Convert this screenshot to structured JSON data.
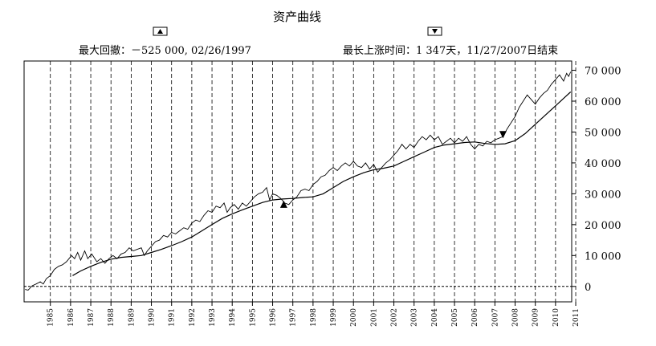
{
  "chart_data": {
    "type": "line",
    "title": "资产曲线",
    "annotations": {
      "drawdown": {
        "text": "最大回撤：－525 000, 02/26/1997",
        "marker": "up-triangle"
      },
      "run_up": {
        "text": "最长上涨时间：1 347天，11/27/2007日结束",
        "marker": "down-triangle"
      }
    },
    "x_ticks": [
      "1985",
      "1986",
      "1987",
      "1988",
      "1989",
      "1990",
      "1991",
      "1992",
      "1993",
      "1994",
      "1995",
      "1996",
      "1997",
      "1998",
      "1999",
      "2000",
      "2001",
      "2002",
      "2003",
      "2004",
      "2005",
      "2006",
      "2007",
      "2008",
      "2009",
      "2010",
      "2011"
    ],
    "y_ticks": [
      "0",
      "10 000",
      "20 000",
      "30 000",
      "40 000",
      "50 000",
      "60 000",
      "70 000"
    ],
    "xlim": [
      1984.2,
      2011.3
    ],
    "ylim": [
      -5000,
      73000
    ],
    "grid": "vertical-dashed",
    "zero_line": "dashed",
    "series": [
      {
        "role": "equity",
        "points": [
          [
            1984.25,
            -1000
          ],
          [
            1984.4,
            -1200
          ],
          [
            1984.6,
            200
          ],
          [
            1984.8,
            800
          ],
          [
            1985.0,
            1500
          ],
          [
            1985.15,
            800
          ],
          [
            1985.3,
            2500
          ],
          [
            1985.5,
            3500
          ],
          [
            1985.7,
            5500
          ],
          [
            1985.9,
            6500
          ],
          [
            1986.1,
            7000
          ],
          [
            1986.3,
            8000
          ],
          [
            1986.55,
            10000
          ],
          [
            1986.7,
            9000
          ],
          [
            1986.85,
            11000
          ],
          [
            1987.0,
            8500
          ],
          [
            1987.2,
            11500
          ],
          [
            1987.35,
            9000
          ],
          [
            1987.55,
            10500
          ],
          [
            1987.8,
            8000
          ],
          [
            1988.0,
            9000
          ],
          [
            1988.2,
            7500
          ],
          [
            1988.4,
            9000
          ],
          [
            1988.6,
            10000
          ],
          [
            1988.8,
            9000
          ],
          [
            1989.0,
            10500
          ],
          [
            1989.2,
            11000
          ],
          [
            1989.4,
            12500
          ],
          [
            1989.6,
            11500
          ],
          [
            1989.8,
            12000
          ],
          [
            1990.0,
            12500
          ],
          [
            1990.15,
            10000
          ],
          [
            1990.3,
            11500
          ],
          [
            1990.5,
            13000
          ],
          [
            1990.7,
            14500
          ],
          [
            1990.9,
            15000
          ],
          [
            1991.1,
            16500
          ],
          [
            1991.3,
            16000
          ],
          [
            1991.5,
            17500
          ],
          [
            1991.7,
            17000
          ],
          [
            1991.9,
            18000
          ],
          [
            1992.1,
            19000
          ],
          [
            1992.3,
            18500
          ],
          [
            1992.5,
            20500
          ],
          [
            1992.7,
            21500
          ],
          [
            1992.9,
            21000
          ],
          [
            1993.1,
            23000
          ],
          [
            1993.3,
            24500
          ],
          [
            1993.5,
            24000
          ],
          [
            1993.7,
            26000
          ],
          [
            1993.9,
            25500
          ],
          [
            1994.1,
            27000
          ],
          [
            1994.25,
            24000
          ],
          [
            1994.4,
            25500
          ],
          [
            1994.6,
            26500
          ],
          [
            1994.8,
            25000
          ],
          [
            1995.0,
            27000
          ],
          [
            1995.2,
            26000
          ],
          [
            1995.4,
            27500
          ],
          [
            1995.6,
            29000
          ],
          [
            1995.8,
            30000
          ],
          [
            1996.0,
            30500
          ],
          [
            1996.2,
            32000
          ],
          [
            1996.35,
            28000
          ],
          [
            1996.5,
            30000
          ],
          [
            1996.7,
            29500
          ],
          [
            1996.9,
            28500
          ],
          [
            1997.1,
            27000
          ],
          [
            1997.3,
            26500
          ],
          [
            1997.5,
            28000
          ],
          [
            1997.7,
            29000
          ],
          [
            1997.9,
            31000
          ],
          [
            1998.1,
            31500
          ],
          [
            1998.3,
            31000
          ],
          [
            1998.5,
            33000
          ],
          [
            1998.7,
            34000
          ],
          [
            1998.9,
            35500
          ],
          [
            1999.1,
            36000
          ],
          [
            1999.3,
            37500
          ],
          [
            1999.5,
            38500
          ],
          [
            1999.7,
            37500
          ],
          [
            1999.9,
            39000
          ],
          [
            2000.1,
            40000
          ],
          [
            2000.3,
            39000
          ],
          [
            2000.5,
            40500
          ],
          [
            2000.7,
            39000
          ],
          [
            2000.9,
            38500
          ],
          [
            2001.1,
            40000
          ],
          [
            2001.3,
            38000
          ],
          [
            2001.5,
            39500
          ],
          [
            2001.7,
            37000
          ],
          [
            2001.9,
            38500
          ],
          [
            2002.1,
            40000
          ],
          [
            2002.3,
            41000
          ],
          [
            2002.5,
            42500
          ],
          [
            2002.7,
            44000
          ],
          [
            2002.9,
            46000
          ],
          [
            2003.1,
            44500
          ],
          [
            2003.3,
            46000
          ],
          [
            2003.5,
            45000
          ],
          [
            2003.7,
            47000
          ],
          [
            2003.9,
            48500
          ],
          [
            2004.1,
            47500
          ],
          [
            2004.3,
            49000
          ],
          [
            2004.5,
            47500
          ],
          [
            2004.7,
            48500
          ],
          [
            2004.9,
            46000
          ],
          [
            2005.1,
            47000
          ],
          [
            2005.3,
            48000
          ],
          [
            2005.5,
            46500
          ],
          [
            2005.7,
            48000
          ],
          [
            2005.9,
            47000
          ],
          [
            2006.1,
            48500
          ],
          [
            2006.3,
            46000
          ],
          [
            2006.5,
            44500
          ],
          [
            2006.7,
            46000
          ],
          [
            2006.9,
            45500
          ],
          [
            2007.1,
            47000
          ],
          [
            2007.3,
            46500
          ],
          [
            2007.5,
            47500
          ],
          [
            2007.7,
            48000
          ],
          [
            2007.9,
            48500
          ],
          [
            2008.1,
            51000
          ],
          [
            2008.3,
            53000
          ],
          [
            2008.5,
            55000
          ],
          [
            2008.7,
            58000
          ],
          [
            2008.9,
            60000
          ],
          [
            2009.1,
            62000
          ],
          [
            2009.3,
            60500
          ],
          [
            2009.5,
            59000
          ],
          [
            2009.7,
            61000
          ],
          [
            2009.9,
            62500
          ],
          [
            2010.1,
            63500
          ],
          [
            2010.3,
            65500
          ],
          [
            2010.5,
            67000
          ],
          [
            2010.7,
            68500
          ],
          [
            2010.9,
            66500
          ],
          [
            2011.05,
            69000
          ],
          [
            2011.15,
            68000
          ],
          [
            2011.25,
            69500
          ]
        ]
      },
      {
        "role": "moving-average",
        "points": [
          [
            1986.6,
            3500
          ],
          [
            1987.0,
            5000
          ],
          [
            1987.5,
            6500
          ],
          [
            1988.0,
            7800
          ],
          [
            1988.5,
            8800
          ],
          [
            1989.0,
            9400
          ],
          [
            1989.5,
            9700
          ],
          [
            1990.0,
            10000
          ],
          [
            1990.5,
            11000
          ],
          [
            1991.0,
            12000
          ],
          [
            1991.5,
            13200
          ],
          [
            1992.0,
            14500
          ],
          [
            1992.5,
            16000
          ],
          [
            1993.0,
            18000
          ],
          [
            1993.5,
            20000
          ],
          [
            1994.0,
            22000
          ],
          [
            1994.5,
            23500
          ],
          [
            1995.0,
            24800
          ],
          [
            1995.5,
            26000
          ],
          [
            1996.0,
            27200
          ],
          [
            1996.5,
            28000
          ],
          [
            1997.0,
            28300
          ],
          [
            1997.5,
            28500
          ],
          [
            1998.0,
            28800
          ],
          [
            1998.5,
            29000
          ],
          [
            1999.0,
            30000
          ],
          [
            1999.5,
            32000
          ],
          [
            2000.0,
            34000
          ],
          [
            2000.5,
            35500
          ],
          [
            2001.0,
            36800
          ],
          [
            2001.5,
            37800
          ],
          [
            2002.0,
            38300
          ],
          [
            2002.5,
            39000
          ],
          [
            2003.0,
            40500
          ],
          [
            2003.5,
            42000
          ],
          [
            2004.0,
            43500
          ],
          [
            2004.5,
            45000
          ],
          [
            2005.0,
            45800
          ],
          [
            2005.5,
            46200
          ],
          [
            2006.0,
            46600
          ],
          [
            2006.5,
            46800
          ],
          [
            2007.0,
            46300
          ],
          [
            2007.5,
            46000
          ],
          [
            2008.0,
            46200
          ],
          [
            2008.5,
            47200
          ],
          [
            2009.0,
            49500
          ],
          [
            2009.5,
            52500
          ],
          [
            2010.0,
            55500
          ],
          [
            2010.5,
            58500
          ],
          [
            2011.0,
            61500
          ],
          [
            2011.25,
            63000
          ]
        ]
      }
    ],
    "markers": [
      {
        "type": "up-triangle",
        "x": 1997.05,
        "y": 26500
      },
      {
        "type": "down-triangle",
        "x": 2007.9,
        "y": 49000
      }
    ]
  }
}
